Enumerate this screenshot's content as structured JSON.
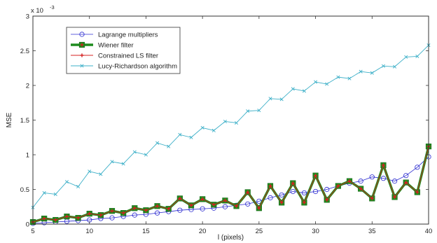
{
  "chart_data": {
    "type": "line",
    "title": "",
    "xlabel": "l (pixels)",
    "ylabel": "MSE",
    "y_exponent_label": "x 10",
    "y_exponent_power": "-3",
    "xlim": [
      5,
      40
    ],
    "ylim": [
      0,
      3
    ],
    "xticks": [
      5,
      10,
      15,
      20,
      25,
      30,
      35,
      40
    ],
    "yticks": [
      0,
      0.5,
      1,
      1.5,
      2,
      2.5,
      3
    ],
    "xtick_labels": [
      "5",
      "10",
      "15",
      "20",
      "25",
      "30",
      "35",
      "40"
    ],
    "ytick_labels": [
      "0",
      "0.5",
      "1",
      "1.5",
      "2",
      "2.5",
      "3"
    ],
    "grid": false,
    "legend_position": "top-left",
    "x": [
      5,
      6,
      7,
      8,
      9,
      10,
      11,
      12,
      13,
      14,
      15,
      16,
      17,
      18,
      19,
      20,
      21,
      22,
      23,
      24,
      25,
      26,
      27,
      28,
      29,
      30,
      31,
      32,
      33,
      34,
      35,
      36,
      37,
      38,
      39,
      40
    ],
    "series": [
      {
        "name": "Lagrange multipliers",
        "color": "#2b2bd0",
        "marker": "circle",
        "values": [
          0.01,
          0.02,
          0.03,
          0.04,
          0.05,
          0.06,
          0.08,
          0.09,
          0.11,
          0.13,
          0.14,
          0.16,
          0.18,
          0.2,
          0.21,
          0.22,
          0.23,
          0.25,
          0.27,
          0.29,
          0.33,
          0.38,
          0.42,
          0.47,
          0.45,
          0.47,
          0.5,
          0.55,
          0.59,
          0.62,
          0.68,
          0.66,
          0.62,
          0.7,
          0.82,
          0.97
        ]
      },
      {
        "name": "Wiener filter",
        "color": "#1e8c1e",
        "marker": "square",
        "values": [
          0.03,
          0.08,
          0.06,
          0.11,
          0.09,
          0.15,
          0.13,
          0.19,
          0.16,
          0.23,
          0.2,
          0.26,
          0.22,
          0.37,
          0.27,
          0.36,
          0.28,
          0.34,
          0.26,
          0.46,
          0.23,
          0.55,
          0.31,
          0.59,
          0.31,
          0.7,
          0.35,
          0.55,
          0.62,
          0.51,
          0.37,
          0.85,
          0.39,
          0.6,
          0.46,
          1.12
        ]
      },
      {
        "name": "Constrained LS filter",
        "color": "#d42020",
        "marker": "plus",
        "values": [
          0.03,
          0.08,
          0.06,
          0.11,
          0.09,
          0.15,
          0.13,
          0.19,
          0.16,
          0.23,
          0.2,
          0.26,
          0.22,
          0.37,
          0.27,
          0.36,
          0.28,
          0.34,
          0.26,
          0.46,
          0.23,
          0.55,
          0.31,
          0.59,
          0.31,
          0.7,
          0.35,
          0.55,
          0.62,
          0.51,
          0.37,
          0.85,
          0.39,
          0.6,
          0.46,
          1.12
        ]
      },
      {
        "name": "Lucy-Richardson algorithm",
        "color": "#3eb0c8",
        "marker": "x",
        "values": [
          0.24,
          0.45,
          0.43,
          0.61,
          0.54,
          0.76,
          0.72,
          0.9,
          0.87,
          1.04,
          1.0,
          1.17,
          1.12,
          1.29,
          1.25,
          1.39,
          1.35,
          1.48,
          1.46,
          1.63,
          1.64,
          1.81,
          1.8,
          1.95,
          1.92,
          2.05,
          2.02,
          2.12,
          2.1,
          2.2,
          2.18,
          2.28,
          2.27,
          2.41,
          2.42,
          2.58
        ]
      }
    ]
  }
}
